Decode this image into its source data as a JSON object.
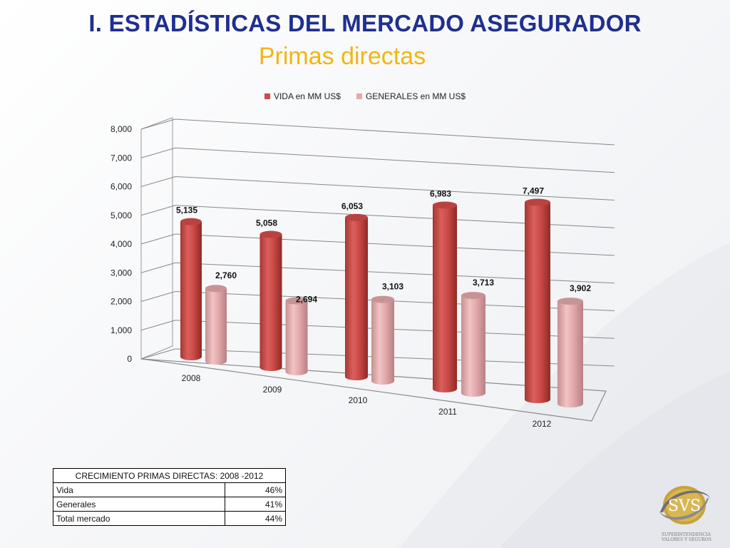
{
  "title": "I. ESTADÍSTICAS DEL MERCADO ASEGURADOR",
  "subtitle": "Primas directas",
  "colors": {
    "vida": "#cd4b48",
    "generales": "#e4aaac",
    "title": "#1f2f8f",
    "subtitle": "#f2b611"
  },
  "chart_data": {
    "type": "bar",
    "categories": [
      "2008",
      "2009",
      "2010",
      "2011",
      "2012"
    ],
    "series": [
      {
        "name": "VIDA en MM US$",
        "values": [
          5135,
          5058,
          6053,
          6983,
          7497
        ],
        "labels": [
          "5,135",
          "5,058",
          "6,053",
          "6,983",
          "7,497"
        ]
      },
      {
        "name": "GENERALES en MM US$",
        "values": [
          2760,
          2694,
          3103,
          3713,
          3902
        ],
        "labels": [
          "2,760",
          "2,694",
          "3,103",
          "3,713",
          "3,902"
        ]
      }
    ],
    "ylim": [
      0,
      8000
    ],
    "yticks": [
      "0",
      "1,000",
      "2,000",
      "3,000",
      "4,000",
      "5,000",
      "6,000",
      "7,000",
      "8,000"
    ],
    "legend": "top",
    "grid": true,
    "style": "3d-cylinder"
  },
  "growth_table": {
    "header": "CRECIMIENTO PRIMAS DIRECTAS: 2008 -2012",
    "rows": [
      {
        "label": "Vida",
        "value": "46%"
      },
      {
        "label": "Generales",
        "value": "41%"
      },
      {
        "label": "Total mercado",
        "value": "44%"
      }
    ]
  },
  "logo": {
    "text": "SVS",
    "caption_line1": "SUPERINTENDENCIA",
    "caption_line2": "VALORES Y SEGUROS"
  }
}
